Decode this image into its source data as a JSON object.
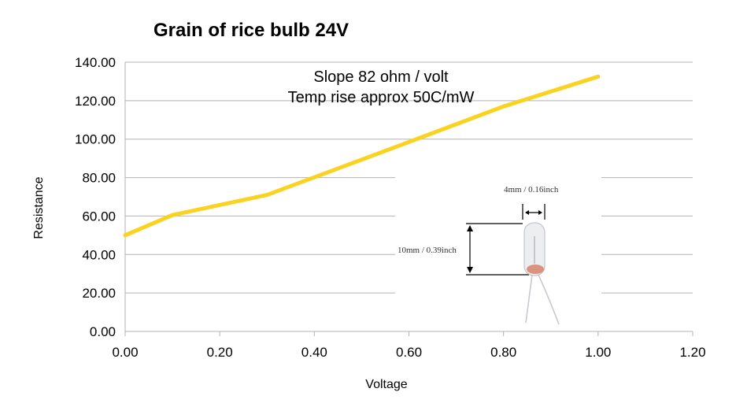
{
  "chart_data": {
    "type": "line",
    "title": "Grain of rice bulb  24V",
    "xlabel": "Voltage",
    "ylabel": "Resistance",
    "xlim": [
      0,
      1.2
    ],
    "ylim": [
      0,
      140
    ],
    "x_ticks": [
      "0.00",
      "0.20",
      "0.40",
      "0.60",
      "0.80",
      "1.00",
      "1.20"
    ],
    "y_ticks": [
      "0.00",
      "20.00",
      "40.00",
      "60.00",
      "80.00",
      "100.00",
      "120.00",
      "140.00"
    ],
    "grid": "horizontal",
    "series": [
      {
        "x": [
          0.0,
          0.1,
          0.3,
          0.6,
          0.8,
          1.0
        ],
        "y": [
          50.0,
          60.5,
          71.0,
          98.5,
          117.0,
          132.5
        ],
        "color": "#F9D320"
      }
    ],
    "annotations": [
      "Slope 82 ohm / volt",
      "Temp rise approx 50C/mW"
    ],
    "inset_image": {
      "width_label": "4mm / 0.16inch",
      "height_label": "10mm / 0.39inch"
    }
  }
}
